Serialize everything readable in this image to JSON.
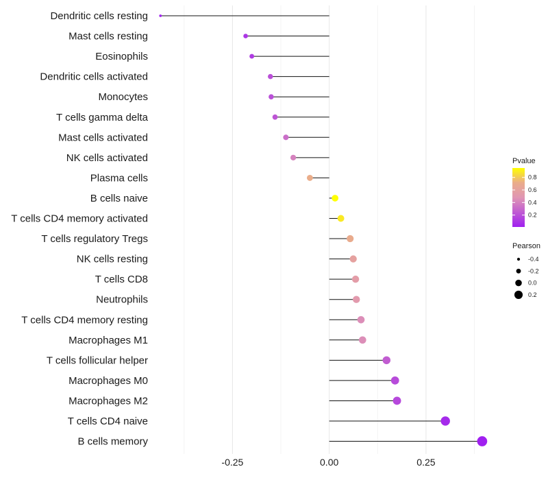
{
  "chart_data": {
    "type": "lollipop",
    "title": "",
    "xlabel": "",
    "ylabel": "",
    "xlim": [
      -0.44,
      0.42
    ],
    "x_ticks": [
      -0.25,
      0.0,
      0.25
    ],
    "x_tick_labels": [
      "-0.25",
      "0.00",
      "0.25"
    ],
    "grid": true,
    "categories": [
      "Dendritic cells resting",
      "Mast cells resting",
      "Eosinophils",
      "Dendritic cells activated",
      "Monocytes",
      "T cells gamma delta",
      "Mast cells activated",
      "NK cells activated",
      "Plasma cells",
      "B cells naive",
      "T cells CD4 memory activated",
      "T cells regulatory  Tregs ",
      "NK cells resting",
      "T cells CD8",
      "Neutrophils",
      "T cells CD4 memory resting",
      "Macrophages M1",
      "T cells follicular helper",
      "Macrophages M0",
      "Macrophages M2",
      "T cells CD4 naive",
      "B cells memory"
    ],
    "pearson": [
      -0.436,
      -0.216,
      -0.2,
      -0.152,
      -0.15,
      -0.14,
      -0.112,
      -0.093,
      -0.05,
      0.015,
      0.03,
      0.054,
      0.062,
      0.068,
      0.07,
      0.082,
      0.086,
      0.148,
      0.17,
      0.175,
      0.3,
      0.395
    ],
    "pvalue": [
      0.02,
      0.1,
      0.12,
      0.2,
      0.2,
      0.22,
      0.32,
      0.4,
      0.72,
      0.95,
      0.9,
      0.7,
      0.6,
      0.55,
      0.52,
      0.45,
      0.45,
      0.25,
      0.18,
      0.17,
      0.05,
      0.01
    ],
    "color_legend": {
      "title": "Pvalue",
      "ticks": [
        0.8,
        0.6,
        0.4,
        0.2
      ],
      "tick_labels": [
        "0.8",
        "0.6",
        "0.4",
        "0.2"
      ],
      "range": [
        0.01,
        0.95
      ],
      "low_color": "#a020f0",
      "high_color": "#ffff00",
      "placement": "right"
    },
    "size_legend": {
      "title": "Pearson",
      "values": [
        -0.4,
        -0.2,
        0.0,
        0.2
      ],
      "labels": [
        "-0.4",
        "-0.2",
        "0.0",
        "0.2"
      ],
      "placement": "right"
    }
  }
}
